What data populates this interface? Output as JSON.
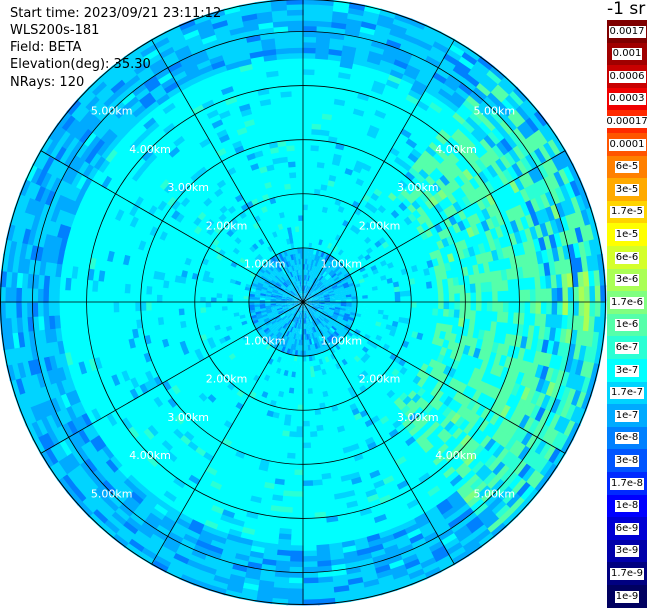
{
  "header": {
    "start_time": "Start time: 2023/09/21 23:11:12",
    "device": "WLS200s-181",
    "field": "Field: BETA",
    "elevation": "Elevation(deg): 35.30",
    "nrays": "NRays: 120"
  },
  "colorbar": {
    "unit_label": "-1 sr",
    "levels": [
      {
        "label": "0.0017",
        "color": "#7f0000"
      },
      {
        "label": "0.001",
        "color": "#a00000"
      },
      {
        "label": "0.0006",
        "color": "#c80000"
      },
      {
        "label": "0.0003",
        "color": "#f00000"
      },
      {
        "label": "0.00017",
        "color": "#ff2a00"
      },
      {
        "label": "0.0001",
        "color": "#ff5500"
      },
      {
        "label": "6e-5",
        "color": "#ff8000"
      },
      {
        "label": "3e-5",
        "color": "#ffaa00"
      },
      {
        "label": "1.7e-5",
        "color": "#ffd400"
      },
      {
        "label": "1e-5",
        "color": "#ffff00"
      },
      {
        "label": "6e-6",
        "color": "#d4ff2a"
      },
      {
        "label": "3e-6",
        "color": "#aaff55"
      },
      {
        "label": "1.7e-6",
        "color": "#80ff80"
      },
      {
        "label": "1e-6",
        "color": "#55ffaa"
      },
      {
        "label": "6e-7",
        "color": "#2affd4"
      },
      {
        "label": "3e-7",
        "color": "#00ffff"
      },
      {
        "label": "1.7e-7",
        "color": "#00d4ff"
      },
      {
        "label": "1e-7",
        "color": "#00aaff"
      },
      {
        "label": "6e-8",
        "color": "#0080ff"
      },
      {
        "label": "3e-8",
        "color": "#0055ff"
      },
      {
        "label": "1.7e-8",
        "color": "#002aff"
      },
      {
        "label": "1e-8",
        "color": "#0000ff"
      },
      {
        "label": "6e-9",
        "color": "#0000d4"
      },
      {
        "label": "3e-9",
        "color": "#0000aa"
      },
      {
        "label": "1.7e-9",
        "color": "#000080"
      },
      {
        "label": "1e-9",
        "color": "#000060"
      }
    ]
  },
  "chart_data": {
    "type": "heatmap",
    "projection": "polar (PPI)",
    "field": "BETA",
    "elevation_deg": 35.3,
    "nrays": 120,
    "range_rings_km": [
      1,
      2,
      3,
      4,
      5
    ],
    "range_labels": [
      "1.00km",
      "2.00km",
      "3.00km",
      "4.00km",
      "5.00km"
    ],
    "azimuth_spokes_deg": [
      0,
      30,
      60,
      90,
      120,
      150,
      180,
      210,
      240,
      270,
      300,
      330
    ],
    "max_range_km": 5.6,
    "grid": true,
    "colorscale": "log10 backscatter, 1e-9 to 0.0017",
    "dominant_value": "3e-7",
    "regions": [
      {
        "description": "inner core",
        "range_km": [
          0,
          1.0
        ],
        "value": "1.7e-7"
      },
      {
        "description": "bulk",
        "range_km": [
          1.0,
          4.5
        ],
        "value": "3e-7"
      },
      {
        "description": "outer ring",
        "range_km": [
          4.5,
          5.6
        ],
        "value": "1.7e-7"
      },
      {
        "description": "enhanced sector east",
        "azimuth_deg": [
          40,
          140
        ],
        "range_km": [
          2.5,
          5.5
        ],
        "value": "1e-6"
      },
      {
        "description": "peak east",
        "azimuth_deg": [
          85,
          95
        ],
        "range_km": [
          4.8,
          5.3
        ],
        "value": "3e-6"
      }
    ]
  }
}
